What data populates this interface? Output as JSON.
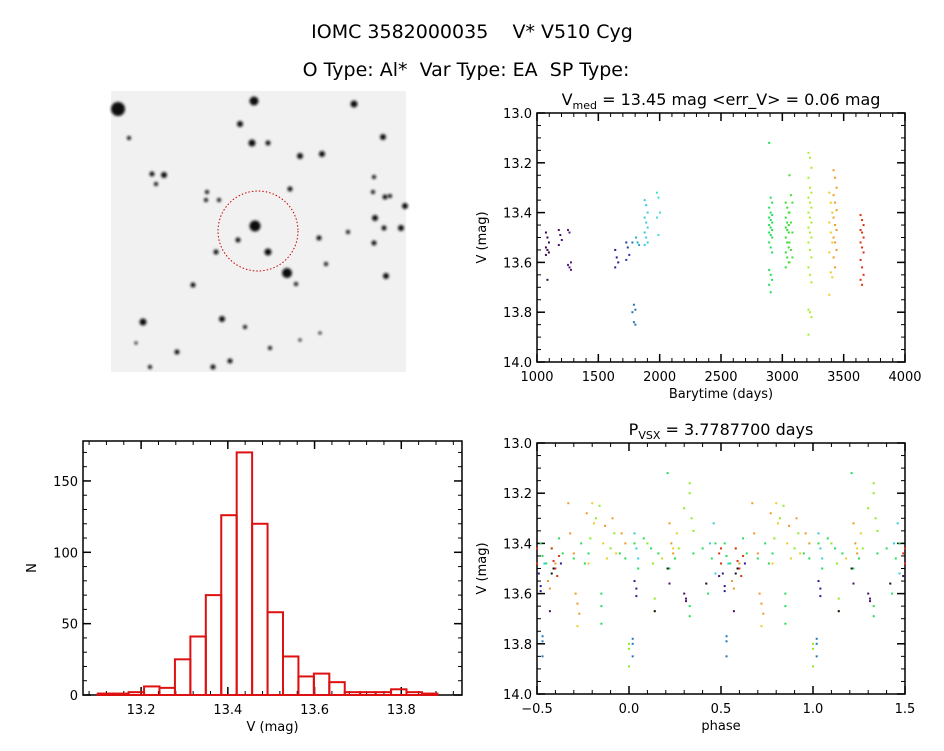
{
  "header": {
    "title": "IOMC 3582000035    V* V510 Cyg",
    "subtitle": "O Type: Al*  Var Type: EA  SP Type:"
  },
  "colors": {
    "histogram": "#dd1111",
    "circle": "#cc0000"
  },
  "chart_data": [
    {
      "id": "lightcurve",
      "type": "scatter",
      "title_main": "V",
      "title_sub": "med",
      "title_rest": " = 13.45 mag <err_V> = 0.06 mag",
      "xlabel": "Barytime (days)",
      "ylabel": "V (mag)",
      "xlim": [
        1000,
        4000
      ],
      "ylim": [
        14.0,
        13.0
      ],
      "y_inverted": true,
      "xticks": [
        "1000",
        "1500",
        "2000",
        "2500",
        "3000",
        "3500",
        "4000"
      ],
      "yticks": [
        "13.0",
        "13.2",
        "13.4",
        "13.6",
        "13.8",
        "14.0"
      ],
      "clusters": [
        {
          "t": 1085,
          "color": "#3a0a4a",
          "v": [
            13.48,
            13.5,
            13.52,
            13.54,
            13.55,
            13.56,
            13.57,
            13.67
          ]
        },
        {
          "t": 1190,
          "color": "#4a0f6a",
          "v": [
            13.47,
            13.49,
            13.51,
            13.53
          ]
        },
        {
          "t": 1265,
          "color": "#551a7a",
          "v": [
            13.47,
            13.48,
            13.6,
            13.61,
            13.62,
            13.63
          ]
        },
        {
          "t": 1650,
          "color": "#2a1a8a",
          "v": [
            13.55,
            13.58,
            13.6,
            13.62
          ]
        },
        {
          "t": 1740,
          "color": "#2a3a9a",
          "v": [
            13.52,
            13.54,
            13.57,
            13.59
          ]
        },
        {
          "t": 1790,
          "color": "#2277bb",
          "v": [
            13.52,
            13.77,
            13.79,
            13.8,
            13.84,
            13.85
          ]
        },
        {
          "t": 1820,
          "color": "#22aacc",
          "v": [
            13.5,
            13.52,
            13.53
          ]
        },
        {
          "t": 1890,
          "color": "#33ccdd",
          "v": [
            13.35,
            13.37,
            13.4,
            13.42,
            13.44,
            13.46,
            13.48,
            13.5,
            13.52,
            13.53
          ]
        },
        {
          "t": 1990,
          "color": "#44ddcc",
          "v": [
            13.32,
            13.34,
            13.4,
            13.42,
            13.49
          ]
        },
        {
          "t": 2905,
          "color": "#22dd55",
          "v": [
            13.12,
            13.34,
            13.36,
            13.38,
            13.4,
            13.41,
            13.42,
            13.43,
            13.44,
            13.45,
            13.46,
            13.47,
            13.48,
            13.49,
            13.5,
            13.52,
            13.54,
            13.56,
            13.63,
            13.65,
            13.67,
            13.69,
            13.72
          ]
        },
        {
          "t": 3040,
          "color": "#33dd33",
          "v": [
            13.36,
            13.38,
            13.4,
            13.42,
            13.44,
            13.45,
            13.46,
            13.47,
            13.48,
            13.5,
            13.52,
            13.54,
            13.56,
            13.58,
            13.6,
            13.62
          ]
        },
        {
          "t": 3070,
          "color": "#44dd33",
          "v": [
            13.25,
            13.33,
            13.36,
            13.4,
            13.44,
            13.48,
            13.52,
            13.55,
            13.58,
            13.6
          ]
        },
        {
          "t": 3225,
          "color": "#aaee22",
          "v": [
            13.16,
            13.18,
            13.22,
            13.26,
            13.3,
            13.32,
            13.34,
            13.36,
            13.38,
            13.4,
            13.42,
            13.44,
            13.46,
            13.48,
            13.5,
            13.52,
            13.55,
            13.58,
            13.62,
            13.65,
            13.68,
            13.79,
            13.8,
            13.82,
            13.89
          ]
        },
        {
          "t": 3395,
          "color": "#eecc22",
          "v": [
            13.32,
            13.36,
            13.4,
            13.44,
            13.48,
            13.52,
            13.56,
            13.64,
            13.66,
            13.73
          ]
        },
        {
          "t": 3430,
          "color": "#ee9922",
          "v": [
            13.23,
            13.26,
            13.3,
            13.33,
            13.36,
            13.39,
            13.42,
            13.45,
            13.47,
            13.5,
            13.52,
            13.55,
            13.58,
            13.62
          ]
        },
        {
          "t": 3650,
          "color": "#dd3311",
          "v": [
            13.41,
            13.43,
            13.45,
            13.47,
            13.48,
            13.5,
            13.52,
            13.54,
            13.56,
            13.59,
            13.62,
            13.65,
            13.67,
            13.69
          ]
        }
      ]
    },
    {
      "id": "histogram",
      "type": "bar",
      "xlabel": "V (mag)",
      "ylabel": "N",
      "xlim": [
        13.066,
        13.94
      ],
      "ylim": [
        0,
        178
      ],
      "xticks": [
        "13.2",
        "13.4",
        "13.6",
        "13.8"
      ],
      "yticks": [
        "0",
        "50",
        "100",
        "150"
      ],
      "bin_start": 13.1,
      "bin_width": 0.0356,
      "counts": [
        1,
        1,
        2,
        6,
        5,
        25,
        41,
        70,
        126,
        170,
        120,
        58,
        27,
        13,
        15,
        9,
        2,
        2,
        2,
        4,
        2,
        1
      ]
    },
    {
      "id": "phased",
      "type": "scatter",
      "title_main": "P",
      "title_sub": "VSX",
      "title_rest": " = 3.7787700 days",
      "xlabel": "phase",
      "ylabel": "V (mag)",
      "xlim": [
        -0.5,
        1.5
      ],
      "ylim": [
        14.0,
        13.0
      ],
      "y_inverted": true,
      "xticks": [
        "-0.5",
        "0.0",
        "0.5",
        "1.0",
        "1.5"
      ],
      "yticks": [
        "13.0",
        "13.2",
        "13.4",
        "13.6",
        "13.8",
        "14.0"
      ],
      "groups": [
        {
          "color": "#22dd55",
          "points": [
            [
              0.52,
              13.4
            ],
            [
              0.53,
              13.45
            ],
            [
              0.55,
              13.48
            ],
            [
              0.58,
              13.42
            ],
            [
              0.62,
              13.38
            ],
            [
              0.64,
              13.44
            ],
            [
              0.7,
              13.46
            ],
            [
              0.74,
              13.4
            ],
            [
              0.76,
              13.48
            ],
            [
              0.78,
              13.44
            ],
            [
              0.85,
              13.6
            ],
            [
              0.85,
              13.65
            ],
            [
              0.85,
              13.72
            ],
            [
              0.95,
              13.44
            ],
            [
              0.98,
              13.46
            ],
            [
              0.03,
              13.4
            ],
            [
              0.05,
              13.5
            ],
            [
              0.08,
              13.38
            ],
            [
              0.12,
              13.42
            ],
            [
              0.16,
              13.44
            ],
            [
              0.21,
              13.12
            ],
            [
              0.22,
              13.5
            ],
            [
              0.33,
              13.65
            ],
            [
              0.33,
              13.69
            ],
            [
              0.4,
              13.42
            ],
            [
              0.43,
              13.6
            ],
            [
              0.45,
              13.46
            ],
            [
              0.47,
              13.4
            ],
            [
              0.25,
              13.46
            ],
            [
              0.35,
              13.44
            ]
          ]
        },
        {
          "color": "#88ee22",
          "points": [
            [
              0.82,
              13.3
            ],
            [
              0.84,
              13.25
            ],
            [
              0.9,
              13.42
            ],
            [
              0.92,
              13.36
            ],
            [
              0.1,
              13.4
            ],
            [
              0.13,
              13.48
            ],
            [
              0.14,
              13.62
            ],
            [
              0.14,
              13.67
            ],
            [
              0.3,
              13.26
            ],
            [
              0.33,
              13.16
            ],
            [
              0.33,
              13.2
            ],
            [
              0.34,
              13.3
            ],
            [
              0.35,
              13.35
            ],
            [
              0.0,
              13.8
            ],
            [
              0.0,
              13.82
            ],
            [
              0.0,
              13.89
            ],
            [
              0.27,
              13.42
            ],
            [
              0.79,
              13.38
            ]
          ]
        },
        {
          "color": "#eecc22",
          "points": [
            [
              0.8,
              13.24
            ],
            [
              0.81,
              13.32
            ],
            [
              0.86,
              13.4
            ],
            [
              0.88,
              13.46
            ],
            [
              0.93,
              13.44
            ],
            [
              0.18,
              13.46
            ],
            [
              0.24,
              13.42
            ],
            [
              0.26,
              13.36
            ],
            [
              0.72,
              13.73
            ],
            [
              0.78,
              13.48
            ]
          ]
        },
        {
          "color": "#ee9922",
          "points": [
            [
              0.67,
              13.24
            ],
            [
              0.68,
              13.36
            ],
            [
              0.7,
              13.44
            ],
            [
              0.71,
              13.6
            ],
            [
              0.72,
              13.64
            ],
            [
              0.73,
              13.68
            ],
            [
              0.77,
              13.28
            ],
            [
              0.87,
              13.33
            ],
            [
              0.91,
              13.3
            ],
            [
              0.96,
              13.36
            ],
            [
              0.98,
              13.4
            ],
            [
              0.22,
              13.32
            ],
            [
              0.23,
              13.4
            ],
            [
              0.24,
              13.44
            ],
            [
              0.56,
              13.55
            ],
            [
              0.57,
              13.58
            ],
            [
              0.6,
              13.48
            ]
          ]
        },
        {
          "color": "#dd3311",
          "points": [
            [
              0.58,
              13.42
            ],
            [
              0.59,
              13.47
            ],
            [
              0.6,
              13.5
            ],
            [
              0.61,
              13.53
            ],
            [
              0.62,
              13.45
            ],
            [
              0.49,
              13.44
            ],
            [
              0.5,
              13.48
            ],
            [
              0.5,
              13.42
            ]
          ]
        },
        {
          "color": "#33ccdd",
          "points": [
            [
              0.03,
              13.36
            ],
            [
              0.04,
              13.42
            ],
            [
              0.05,
              13.46
            ],
            [
              0.46,
              13.32
            ],
            [
              0.47,
              13.52
            ],
            [
              0.54,
              13.48
            ],
            [
              0.44,
              13.4
            ]
          ]
        },
        {
          "color": "#2277bb",
          "points": [
            [
              0.02,
              13.78
            ],
            [
              0.02,
              13.8
            ],
            [
              0.02,
              13.85
            ],
            [
              0.53,
              13.77
            ],
            [
              0.53,
              13.79
            ],
            [
              0.53,
              13.85
            ]
          ]
        },
        {
          "color": "#2a1a8a",
          "points": [
            [
              0.03,
              13.55
            ],
            [
              0.04,
              13.58
            ],
            [
              0.04,
              13.61
            ],
            [
              0.51,
              13.52
            ],
            [
              0.52,
              13.57
            ],
            [
              0.52,
              13.59
            ],
            [
              0.63,
              13.48
            ]
          ]
        },
        {
          "color": "#4a0f6a",
          "points": [
            [
              0.3,
              13.6
            ],
            [
              0.31,
              13.62
            ],
            [
              0.31,
              13.63
            ],
            [
              0.22,
              13.56
            ],
            [
              0.57,
              13.67
            ],
            [
              0.49,
              13.53
            ]
          ]
        },
        {
          "color": "#111111",
          "points": [
            [
              0.59,
              13.5
            ],
            [
              0.42,
              13.56
            ],
            [
              0.21,
              13.5
            ],
            [
              0.58,
              13.52
            ],
            [
              0.14,
              13.67
            ]
          ]
        }
      ]
    }
  ]
}
